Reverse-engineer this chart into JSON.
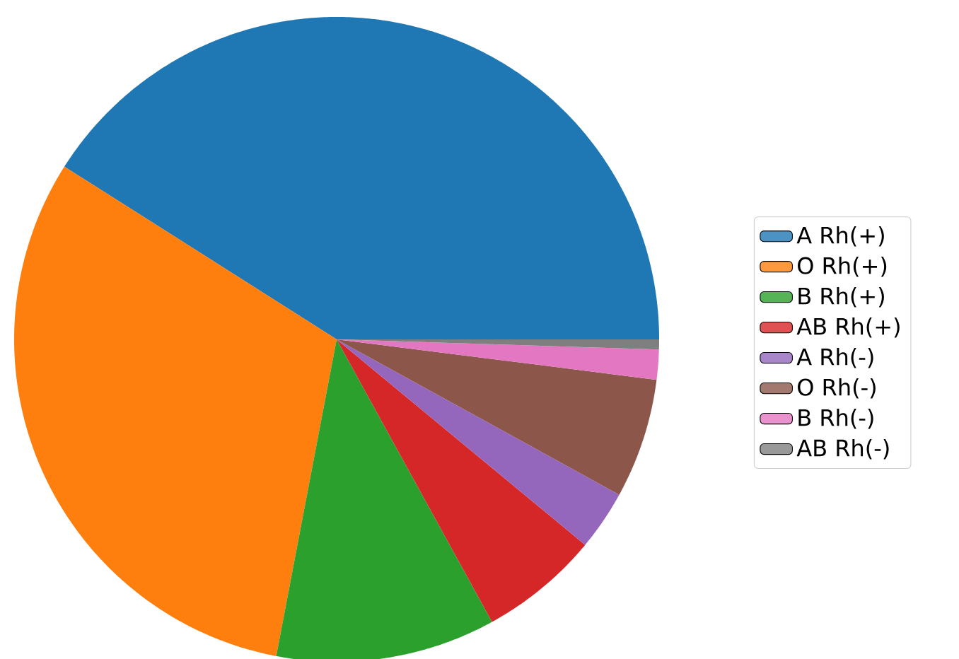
{
  "chart_data": {
    "type": "pie",
    "categories": [
      "A Rh(+)",
      "O Rh(+)",
      "B Rh(+)",
      "AB Rh(+)",
      "A Rh(-)",
      "O Rh(-)",
      "B Rh(-)",
      "AB Rh(-)"
    ],
    "values": [
      41,
      31,
      11,
      6,
      3,
      6,
      1.5,
      0.5
    ],
    "colors": [
      "#1f77b4",
      "#ff7f0e",
      "#2ca02c",
      "#d62728",
      "#9467bd",
      "#8c564b",
      "#e377c2",
      "#7f7f7f"
    ],
    "legend": "right"
  }
}
